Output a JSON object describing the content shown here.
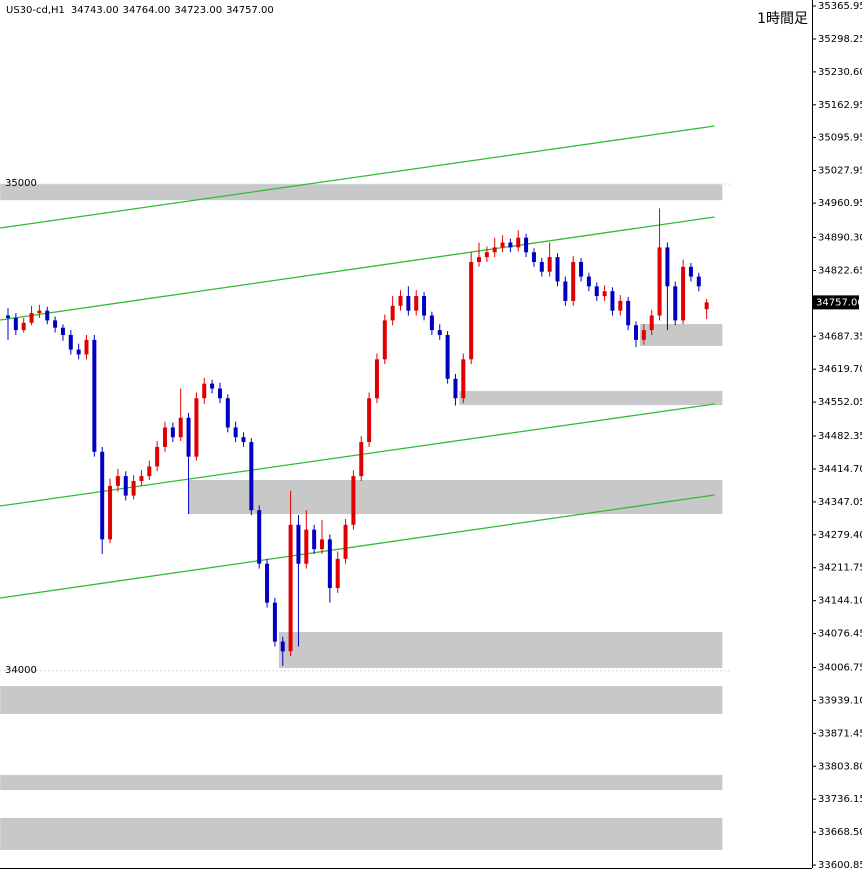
{
  "chart_data": {
    "type": "candlestick",
    "symbol": "US30-cd,H1",
    "ohlc_labels": [
      "34743.00",
      "34764.00",
      "34723.00",
      "34757.00"
    ],
    "timeframe_label": "1時間足",
    "up_color": "#e00000",
    "down_color": "#0000c0",
    "trendline_color": "#33bb33",
    "zone_color": "#c8c8c8",
    "ylim": [
      33594.8,
      35378.3
    ],
    "yticks": [
      35365.95,
      35298.25,
      {
        "value": 35230.6,
        "label": "35230.60"
      },
      35162.95,
      35095.95,
      35027.95,
      34960.95,
      {
        "value": 34890.3,
        "label": "34890.30"
      },
      34822.65,
      34687.35,
      {
        "value": 34619.7,
        "label": "34619.70"
      },
      34552.05,
      34482.35,
      {
        "value": 34414.7,
        "label": "34414.70"
      },
      34347.05,
      {
        "value": 34279.4,
        "label": "34279.40"
      },
      34211.75,
      {
        "value": 34144.1,
        "label": "34144.10"
      },
      34076.45,
      34006.75,
      {
        "value": 33939.1,
        "label": "33939.10"
      },
      33871.45,
      {
        "value": 33803.8,
        "label": "33803.80"
      },
      33736.15,
      {
        "value": 33668.5,
        "label": "33668.50"
      },
      33600.85
    ],
    "current_price": {
      "value": 34757,
      "label": "34757.00"
    },
    "levels": [
      35000,
      34000
    ],
    "open": [
      34730,
      34725,
      34700,
      34715,
      34735,
      34740,
      34720,
      34705,
      34690,
      34660,
      34650,
      34680,
      34450,
      34270,
      34380,
      34400,
      34360,
      34390,
      34400,
      34420,
      34460,
      34500,
      34480,
      34520,
      34440,
      34560,
      34590,
      34580,
      34560,
      34500,
      34480,
      34470,
      34330,
      34220,
      34140,
      34060,
      34040,
      34300,
      34220,
      34290,
      34250,
      34270,
      34170,
      34230,
      34300,
      34400,
      34470,
      34560,
      34640,
      34720,
      34750,
      34770,
      34740,
      34770,
      34730,
      34700,
      34690,
      34600,
      34560,
      34640,
      34840,
      34850,
      34860,
      34870,
      34880,
      34870,
      34890,
      34860,
      34840,
      34820,
      34850,
      34800,
      34760,
      34840,
      34810,
      34790,
      34770,
      34780,
      34740,
      34760,
      34710,
      34680,
      34700,
      34730,
      34870,
      34790,
      34720,
      34830,
      34810,
      34743
    ],
    "high": [
      34745,
      34735,
      34725,
      34750,
      34752,
      34748,
      34728,
      34712,
      34700,
      34672,
      34690,
      34690,
      34460,
      34395,
      34415,
      34410,
      34402,
      34412,
      34432,
      34472,
      34512,
      34510,
      34580,
      34530,
      34572,
      34602,
      34598,
      34592,
      34568,
      34512,
      34490,
      34478,
      34340,
      34230,
      34150,
      34070,
      34370,
      34320,
      34330,
      34300,
      34310,
      34280,
      34245,
      34312,
      34412,
      34482,
      34572,
      34652,
      34732,
      34770,
      34782,
      34790,
      34782,
      34778,
      34738,
      34712,
      34698,
      34610,
      34652,
      34860,
      34880,
      34872,
      34890,
      34895,
      34888,
      34905,
      34898,
      34868,
      34848,
      34880,
      34858,
      34810,
      34852,
      34848,
      34818,
      34798,
      34792,
      34788,
      34772,
      34768,
      34718,
      34712,
      34742,
      34950,
      34880,
      34800,
      34845,
      34838,
      34818,
      34764
    ],
    "low": [
      34680,
      34690,
      34695,
      34710,
      34725,
      34712,
      34695,
      34678,
      34650,
      34640,
      34640,
      34440,
      34240,
      34262,
      34368,
      34350,
      34352,
      34380,
      34392,
      34410,
      34450,
      34470,
      34472,
      34322,
      34432,
      34548,
      34570,
      34550,
      34490,
      34470,
      34460,
      34320,
      34210,
      34130,
      34050,
      34010,
      34030,
      34050,
      34210,
      34240,
      34240,
      34140,
      34160,
      34220,
      34290,
      34390,
      34460,
      34550,
      34630,
      34710,
      34740,
      34730,
      34730,
      34720,
      34690,
      34680,
      34590,
      34545,
      34550,
      34630,
      34830,
      34840,
      34850,
      34860,
      34860,
      34862,
      34850,
      34830,
      34810,
      34810,
      34790,
      34750,
      34750,
      34800,
      34780,
      34760,
      34760,
      34730,
      34730,
      34700,
      34665,
      34670,
      34690,
      34720,
      34700,
      34710,
      34712,
      34800,
      34780,
      34723
    ],
    "close": [
      34725,
      34700,
      34715,
      34735,
      34740,
      34720,
      34705,
      34690,
      34660,
      34650,
      34680,
      34450,
      34270,
      34380,
      34400,
      34360,
      34390,
      34400,
      34420,
      34460,
      34500,
      34480,
      34520,
      34440,
      34560,
      34590,
      34580,
      34560,
      34500,
      34480,
      34470,
      34330,
      34220,
      34140,
      34060,
      34040,
      34300,
      34220,
      34290,
      34250,
      34270,
      34170,
      34230,
      34300,
      34400,
      34470,
      34560,
      34640,
      34720,
      34750,
      34770,
      34740,
      34770,
      34730,
      34700,
      34690,
      34600,
      34560,
      34640,
      34840,
      34850,
      34860,
      34870,
      34880,
      34870,
      34890,
      34860,
      34840,
      34820,
      34850,
      34800,
      34760,
      34840,
      34810,
      34790,
      34770,
      34780,
      34740,
      34760,
      34710,
      34680,
      34700,
      34730,
      34870,
      34790,
      34720,
      34830,
      34810,
      34790,
      34757
    ],
    "trendlines": [
      {
        "x": [
          -1,
          90
        ],
        "y": [
          34909.8,
          35119.4
        ]
      },
      {
        "x": [
          -1,
          90
        ],
        "y": [
          34720.8,
          34932.4
        ]
      },
      {
        "x": [
          -1,
          90
        ],
        "y": [
          34338.6,
          34548.2
        ]
      },
      {
        "x": [
          -1,
          90
        ],
        "y": [
          34149.6,
          34361.2
        ]
      }
    ],
    "zones": [
      {
        "x": [
          -1,
          91
        ],
        "from": 34967,
        "to": 35000
      },
      {
        "x": [
          80.5,
          91
        ],
        "from": 34667.4,
        "to": 34712.6
      },
      {
        "x": [
          57.5,
          91
        ],
        "from": 34546,
        "to": 34575
      },
      {
        "x": [
          23,
          91
        ],
        "from": 34322,
        "to": 34392
      },
      {
        "x": [
          34.5,
          91
        ],
        "from": 34005.7,
        "to": 34079.7
      },
      {
        "x": [
          -1,
          91
        ],
        "from": 33911.3,
        "to": 33968.8
      },
      {
        "x": [
          -1,
          91
        ],
        "from": 33755,
        "to": 33786
      },
      {
        "x": [
          -1,
          91
        ],
        "from": 33631.9,
        "to": 33697.6
      }
    ]
  }
}
